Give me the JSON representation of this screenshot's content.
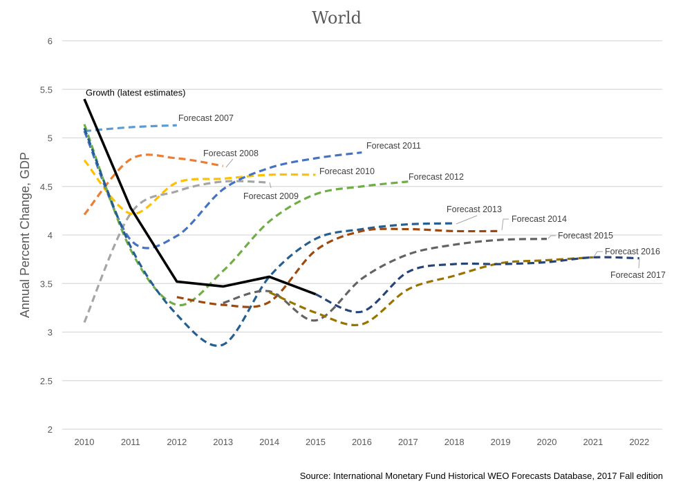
{
  "chart_data": {
    "type": "line",
    "title": "World",
    "xlabel": "",
    "ylabel": "Annual Percent Change, GDP",
    "x": [
      2010,
      2011,
      2012,
      2013,
      2014,
      2015,
      2016,
      2017,
      2018,
      2019,
      2020,
      2021,
      2022
    ],
    "x_tick_labels": [
      "2010",
      "2011",
      "2012",
      "2013",
      "2014",
      "2015",
      "2016",
      "2017",
      "2018",
      "2019",
      "2020",
      "2021",
      "2022"
    ],
    "ylim": [
      2,
      6
    ],
    "y_ticks": [
      2,
      2.5,
      3,
      3.5,
      4,
      4.5,
      5,
      5.5,
      6
    ],
    "y_tick_labels": [
      "2",
      "2.5",
      "3",
      "3.5",
      "4",
      "4.5",
      "5",
      "5.5",
      "6"
    ],
    "grid": true,
    "legend": "none (direct line labels)",
    "series": [
      {
        "name": "Growth (latest estimates)",
        "color": "#000000",
        "dashed": false,
        "points": [
          [
            2010,
            5.4
          ],
          [
            2011,
            4.28
          ],
          [
            2012,
            3.52
          ],
          [
            2013,
            3.47
          ],
          [
            2014,
            3.57
          ],
          [
            2015,
            3.39
          ]
        ]
      },
      {
        "name": "Forecast 2007",
        "color": "#5B9BD5",
        "dashed": true,
        "points": [
          [
            2010,
            5.07
          ],
          [
            2011,
            5.11
          ],
          [
            2012,
            5.13
          ]
        ]
      },
      {
        "name": "Forecast 2008",
        "color": "#ED7D31",
        "dashed": true,
        "points": [
          [
            2010,
            4.21
          ],
          [
            2011,
            4.78
          ],
          [
            2012,
            4.79
          ],
          [
            2013,
            4.71
          ]
        ]
      },
      {
        "name": "Forecast 2009",
        "color": "#A5A5A5",
        "dashed": true,
        "points": [
          [
            2010,
            3.1
          ],
          [
            2011,
            4.22
          ],
          [
            2012,
            4.45
          ],
          [
            2013,
            4.55
          ],
          [
            2014,
            4.54
          ]
        ]
      },
      {
        "name": "Forecast 2010",
        "color": "#FFC000",
        "dashed": true,
        "points": [
          [
            2010,
            4.77
          ],
          [
            2011,
            4.22
          ],
          [
            2012,
            4.54
          ],
          [
            2013,
            4.58
          ],
          [
            2014,
            4.62
          ],
          [
            2015,
            4.62
          ]
        ]
      },
      {
        "name": "Forecast 2011",
        "color": "#4472C4",
        "dashed": true,
        "points": [
          [
            2010,
            5.07
          ],
          [
            2011,
            3.95
          ],
          [
            2012,
            3.99
          ],
          [
            2013,
            4.47
          ],
          [
            2014,
            4.69
          ],
          [
            2015,
            4.79
          ],
          [
            2016,
            4.85
          ]
        ]
      },
      {
        "name": "Forecast 2012",
        "color": "#70AD47",
        "dashed": true,
        "points": [
          [
            2010,
            5.14
          ],
          [
            2011,
            3.85
          ],
          [
            2012,
            3.28
          ],
          [
            2013,
            3.63
          ],
          [
            2014,
            4.14
          ],
          [
            2015,
            4.42
          ],
          [
            2016,
            4.5
          ],
          [
            2017,
            4.55
          ]
        ]
      },
      {
        "name": "Forecast 2013",
        "color": "#255E91",
        "dashed": true,
        "points": [
          [
            2010,
            5.1
          ],
          [
            2011,
            3.88
          ],
          [
            2012,
            3.18
          ],
          [
            2013,
            2.87
          ],
          [
            2014,
            3.57
          ],
          [
            2015,
            3.96
          ],
          [
            2016,
            4.06
          ],
          [
            2017,
            4.11
          ],
          [
            2018,
            4.12
          ]
        ]
      },
      {
        "name": "Forecast 2014",
        "color": "#9E480E",
        "dashed": true,
        "points": [
          [
            2012,
            3.36
          ],
          [
            2013,
            3.28
          ],
          [
            2014,
            3.31
          ],
          [
            2015,
            3.84
          ],
          [
            2016,
            4.04
          ],
          [
            2017,
            4.06
          ],
          [
            2018,
            4.04
          ],
          [
            2019,
            4.04
          ]
        ]
      },
      {
        "name": "Forecast 2015",
        "color": "#636363",
        "dashed": true,
        "points": [
          [
            2013,
            3.3
          ],
          [
            2014,
            3.42
          ],
          [
            2015,
            3.12
          ],
          [
            2016,
            3.55
          ],
          [
            2017,
            3.8
          ],
          [
            2018,
            3.9
          ],
          [
            2019,
            3.95
          ],
          [
            2020,
            3.96
          ]
        ]
      },
      {
        "name": "Forecast 2016",
        "color": "#997300",
        "dashed": true,
        "points": [
          [
            2014,
            3.41
          ],
          [
            2015,
            3.2
          ],
          [
            2016,
            3.08
          ],
          [
            2017,
            3.44
          ],
          [
            2018,
            3.58
          ],
          [
            2019,
            3.71
          ],
          [
            2020,
            3.74
          ],
          [
            2021,
            3.77
          ]
        ]
      },
      {
        "name": "Forecast 2017",
        "color": "#264478",
        "dashed": true,
        "points": [
          [
            2015,
            3.39
          ],
          [
            2016,
            3.21
          ],
          [
            2017,
            3.62
          ],
          [
            2018,
            3.7
          ],
          [
            2019,
            3.7
          ],
          [
            2020,
            3.72
          ],
          [
            2021,
            3.77
          ],
          [
            2022,
            3.76
          ]
        ]
      }
    ],
    "annotations": [
      {
        "text": "Growth (latest estimates)",
        "series": "Growth (latest estimates)",
        "anchor": [
          2010,
          5.4
        ]
      },
      {
        "text": "Forecast 2007",
        "series": "Forecast 2007",
        "anchor": [
          2012,
          5.13
        ]
      },
      {
        "text": "Forecast 2008",
        "series": "Forecast 2008",
        "anchor": [
          2013,
          4.71
        ]
      },
      {
        "text": "Forecast 2009",
        "series": "Forecast 2009",
        "anchor": [
          2014,
          4.54
        ]
      },
      {
        "text": "Forecast 2010",
        "series": "Forecast 2010",
        "anchor": [
          2015,
          4.62
        ]
      },
      {
        "text": "Forecast 2011",
        "series": "Forecast 2011",
        "anchor": [
          2016,
          4.85
        ]
      },
      {
        "text": "Forecast 2012",
        "series": "Forecast 2012",
        "anchor": [
          2017,
          4.55
        ]
      },
      {
        "text": "Forecast 2013",
        "series": "Forecast 2013",
        "anchor": [
          2018,
          4.12
        ]
      },
      {
        "text": "Forecast 2014",
        "series": "Forecast 2014",
        "anchor": [
          2019,
          4.04
        ]
      },
      {
        "text": "Forecast 2015",
        "series": "Forecast 2015",
        "anchor": [
          2020,
          3.96
        ]
      },
      {
        "text": "Forecast 2016",
        "series": "Forecast 2016",
        "anchor": [
          2021,
          3.77
        ]
      },
      {
        "text": "Forecast 2017",
        "series": "Forecast 2017",
        "anchor": [
          2022,
          3.76
        ]
      }
    ],
    "source": "Source: International Monetary Fund Historical WEO Forecasts Database, 2017 Fall edition"
  }
}
